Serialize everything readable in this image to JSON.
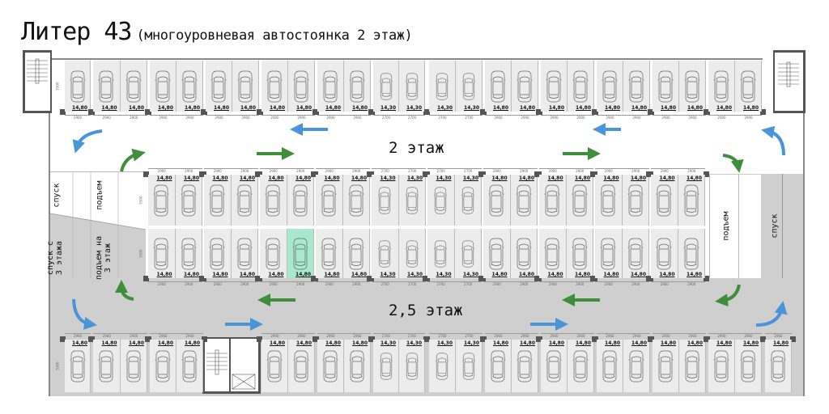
{
  "title": {
    "main": "Литер 43",
    "subtitle": "(многоуровневая автостоянка 2 этаж)"
  },
  "floor_labels": {
    "upper": "2 этаж",
    "lower": "2,5 этаж"
  },
  "ramps": {
    "left_down": "спуск",
    "left_up": "подъем",
    "left_down_from_3": "спуск с\n3 этажа",
    "left_up_to_3": "подъем на\n3 этаж",
    "right_up": "подъем",
    "right_down": "спуск"
  },
  "colors": {
    "spot": "#ececec",
    "highlight": "#a7e8cf",
    "aisle_lower": "#cfcfcf",
    "arrow_blue": "#4a94d8",
    "arrow_green": "#3f8f3a",
    "column": "#555555"
  },
  "rows": {
    "top": {
      "depth": "5300",
      "bays": [
        [
          {
            "area": "14,80",
            "width": "2900"
          }
        ],
        [
          {
            "area": "14,80",
            "width": "2900"
          },
          {
            "area": "14,80",
            "width": "2900"
          }
        ],
        [
          {
            "area": "14,80",
            "width": "2900"
          },
          {
            "area": "14,80",
            "width": "2900"
          }
        ],
        [
          {
            "area": "14,80",
            "width": "2900"
          },
          {
            "area": "14,80",
            "width": "2900"
          }
        ],
        [
          {
            "area": "14,80",
            "width": "2900"
          },
          {
            "area": "14,80",
            "width": "2900"
          }
        ],
        [
          {
            "area": "14,80",
            "width": "2900"
          },
          {
            "area": "14,80",
            "width": "2900"
          }
        ],
        [
          {
            "area": "14,30",
            "width": "2700"
          },
          {
            "area": "14,30",
            "width": "2700"
          }
        ],
        [
          {
            "area": "14,30",
            "width": "2700"
          },
          {
            "area": "14,30",
            "width": "2700"
          }
        ],
        [
          {
            "area": "14,80",
            "width": "2900"
          },
          {
            "area": "14,80",
            "width": "2900"
          }
        ],
        [
          {
            "area": "14,80",
            "width": "2900"
          },
          {
            "area": "14,80",
            "width": "2900"
          }
        ],
        [
          {
            "area": "14,80",
            "width": "2900"
          },
          {
            "area": "14,80",
            "width": "2900"
          }
        ],
        [
          {
            "area": "14,80",
            "width": "2900"
          },
          {
            "area": "14,80",
            "width": "2900"
          }
        ],
        [
          {
            "area": "14,80",
            "width": "2900"
          },
          {
            "area": "14,80",
            "width": "2900"
          }
        ]
      ]
    },
    "middle_upper": {
      "depth": "5300",
      "bays": [
        [
          {
            "area": "14,80",
            "width": "2900"
          },
          {
            "area": "14,80",
            "width": "2900"
          }
        ],
        [
          {
            "area": "14,80",
            "width": "2900"
          },
          {
            "area": "14,80",
            "width": "2900"
          }
        ],
        [
          {
            "area": "14,80",
            "width": "2900"
          },
          {
            "area": "14,80",
            "width": "2900"
          }
        ],
        [
          {
            "area": "14,80",
            "width": "2900"
          },
          {
            "area": "14,80",
            "width": "2900"
          }
        ],
        [
          {
            "area": "14,30",
            "width": "2700"
          },
          {
            "area": "14,30",
            "width": "2700"
          }
        ],
        [
          {
            "area": "14,30",
            "width": "2700"
          },
          {
            "area": "14,30",
            "width": "2700"
          }
        ],
        [
          {
            "area": "14,80",
            "width": "2900"
          },
          {
            "area": "14,80",
            "width": "2900"
          }
        ],
        [
          {
            "area": "14,80",
            "width": "2900"
          },
          {
            "area": "14,80",
            "width": "2900"
          }
        ],
        [
          {
            "area": "14,80",
            "width": "2900"
          },
          {
            "area": "14,80",
            "width": "2900"
          }
        ],
        [
          {
            "area": "14,80",
            "width": "2900"
          },
          {
            "area": "14,80",
            "width": "2900"
          }
        ]
      ]
    },
    "middle_lower": {
      "depth": "5300",
      "bays": [
        [
          {
            "area": "14,80",
            "width": "2900"
          },
          {
            "area": "14,80",
            "width": "2900"
          }
        ],
        [
          {
            "area": "14,80",
            "width": "2900"
          },
          {
            "area": "14,80",
            "width": "2900"
          }
        ],
        [
          {
            "area": "14,80",
            "width": "2900"
          },
          {
            "area": "14,80",
            "width": "2900",
            "highlighted": true
          }
        ],
        [
          {
            "area": "14,80",
            "width": "2900"
          },
          {
            "area": "14,80",
            "width": "2900"
          }
        ],
        [
          {
            "area": "14,30",
            "width": "2700"
          },
          {
            "area": "14,30",
            "width": "2700"
          }
        ],
        [
          {
            "area": "14,30",
            "width": "2700"
          },
          {
            "area": "14,30",
            "width": "2700"
          }
        ],
        [
          {
            "area": "14,80",
            "width": "2900"
          },
          {
            "area": "14,80",
            "width": "2900"
          }
        ],
        [
          {
            "area": "14,80",
            "width": "2900"
          },
          {
            "area": "14,80",
            "width": "2900"
          }
        ],
        [
          {
            "area": "14,80",
            "width": "2900"
          },
          {
            "area": "14,80",
            "width": "2900"
          }
        ],
        [
          {
            "area": "14,80",
            "width": "2900"
          },
          {
            "area": "14,80",
            "width": "2900"
          }
        ]
      ]
    },
    "bottom": {
      "depth": "5300",
      "bays": [
        [
          {
            "area": "14,80",
            "width": "2900"
          }
        ],
        [
          {
            "area": "14,80",
            "width": "2900"
          },
          {
            "area": "14,80",
            "width": "2900"
          }
        ],
        [
          {
            "area": "14,80",
            "width": "2900"
          },
          {
            "area": "14,80",
            "width": "2900"
          }
        ],
        [
          {
            "area": "14,80",
            "width": "2900"
          },
          {
            "area": "14,80",
            "width": "2900"
          }
        ],
        [
          {
            "area": "14,80",
            "width": "2900"
          },
          {
            "area": "14,80",
            "width": "2900"
          }
        ],
        [
          {
            "area": "14,30",
            "width": "2700"
          },
          {
            "area": "14,30",
            "width": "2700"
          }
        ],
        [
          {
            "area": "14,30",
            "width": "2700"
          },
          {
            "area": "14,30",
            "width": "2700"
          }
        ],
        [
          {
            "area": "14,80",
            "width": "2900"
          },
          {
            "area": "14,80",
            "width": "2900"
          }
        ],
        [
          {
            "area": "14,80",
            "width": "2900"
          },
          {
            "area": "14,80",
            "width": "2900"
          }
        ],
        [
          {
            "area": "14,80",
            "width": "2900"
          },
          {
            "area": "14,80",
            "width": "2900"
          }
        ],
        [
          {
            "area": "14,80",
            "width": "2900"
          },
          {
            "area": "14,80",
            "width": "2900"
          }
        ],
        [
          {
            "area": "14,80",
            "width": "2900"
          },
          {
            "area": "14,80",
            "width": "2900"
          }
        ],
        [
          {
            "area": "14,80",
            "width": "2900"
          }
        ]
      ]
    }
  }
}
